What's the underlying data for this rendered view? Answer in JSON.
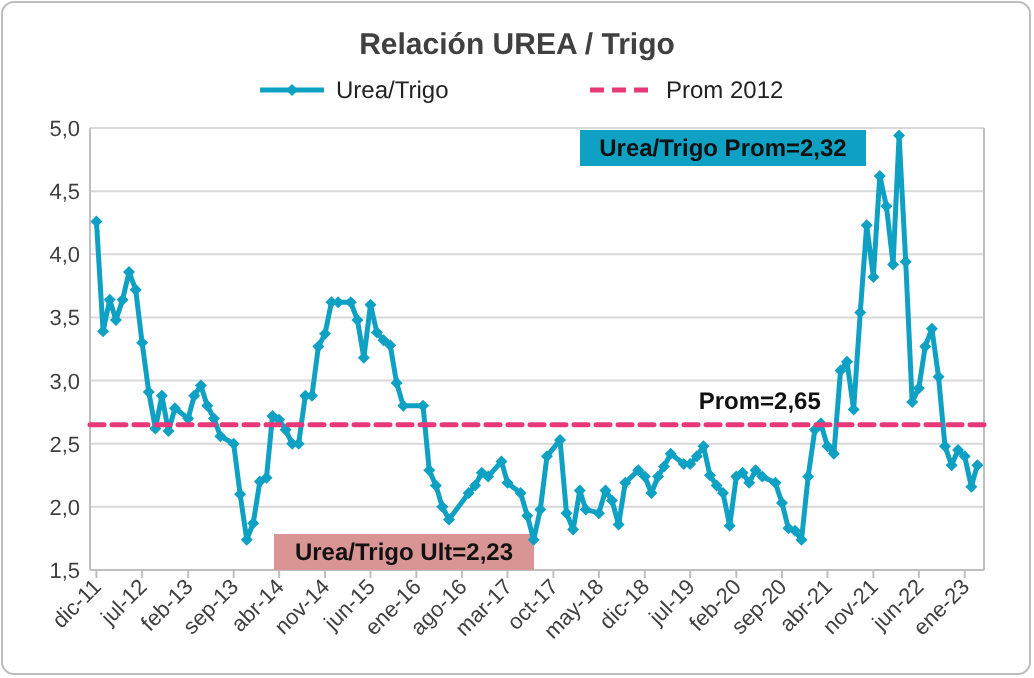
{
  "chart_data": {
    "type": "line",
    "title": "Relación UREA / Trigo",
    "legend": "top",
    "grid": "y",
    "marker": "diamond",
    "series": [
      {
        "name": "Urea/Trigo",
        "color": "#0fa1c4",
        "line_style": "solid",
        "x": [
          "2011-12",
          "2012-01",
          "2012-02",
          "2012-03",
          "2012-04",
          "2012-05",
          "2012-06",
          "2012-07",
          "2012-08",
          "2012-09",
          "2012-10",
          "2012-11",
          "2012-12",
          "2013-02",
          "2013-03",
          "2013-04",
          "2013-05",
          "2013-06",
          "2013-07",
          "2013-09",
          "2013-10",
          "2013-11",
          "2013-12",
          "2014-01",
          "2014-02",
          "2014-03",
          "2014-04",
          "2014-05",
          "2014-06",
          "2014-07",
          "2014-08",
          "2014-09",
          "2014-10",
          "2014-11",
          "2014-12",
          "2015-01",
          "2015-03",
          "2015-04",
          "2015-05",
          "2015-06",
          "2015-07",
          "2015-08",
          "2015-09",
          "2015-10",
          "2015-11",
          "2016-02",
          "2016-03",
          "2016-04",
          "2016-05",
          "2016-06",
          "2016-09",
          "2016-10",
          "2016-11",
          "2016-12",
          "2017-02",
          "2017-03",
          "2017-05",
          "2017-06",
          "2017-07",
          "2017-08",
          "2017-09",
          "2017-11",
          "2017-12",
          "2018-01",
          "2018-02",
          "2018-03",
          "2018-05",
          "2018-06",
          "2018-07",
          "2018-08",
          "2018-09",
          "2018-11",
          "2018-12",
          "2019-01",
          "2019-02",
          "2019-03",
          "2019-04",
          "2019-06",
          "2019-07",
          "2019-08",
          "2019-09",
          "2019-10",
          "2019-11",
          "2019-12",
          "2020-01",
          "2020-02",
          "2020-03",
          "2020-04",
          "2020-05",
          "2020-06",
          "2020-08",
          "2020-09",
          "2020-10",
          "2020-11",
          "2020-12",
          "2021-01",
          "2021-02",
          "2021-03",
          "2021-04",
          "2021-05",
          "2021-06",
          "2021-07",
          "2021-08",
          "2021-09",
          "2021-10",
          "2021-11",
          "2021-12",
          "2022-01",
          "2022-02",
          "2022-03",
          "2022-04",
          "2022-05",
          "2022-06",
          "2022-07",
          "2022-08",
          "2022-09",
          "2022-10",
          "2022-11",
          "2022-12",
          "2023-01",
          "2023-02",
          "2023-03"
        ],
        "values": [
          4.26,
          3.39,
          3.64,
          3.48,
          3.64,
          3.86,
          3.72,
          3.3,
          2.91,
          2.62,
          2.88,
          2.6,
          2.78,
          2.7,
          2.88,
          2.96,
          2.8,
          2.7,
          2.56,
          2.5,
          2.1,
          1.74,
          1.87,
          2.2,
          2.23,
          2.72,
          2.69,
          2.61,
          2.5,
          2.5,
          2.88,
          2.88,
          3.27,
          3.37,
          3.62,
          3.62,
          3.62,
          3.48,
          3.18,
          3.6,
          3.38,
          3.32,
          3.28,
          2.98,
          2.8,
          2.8,
          2.29,
          2.17,
          2.0,
          1.9,
          2.11,
          2.17,
          2.27,
          2.24,
          2.36,
          2.19,
          2.11,
          1.93,
          1.74,
          1.98,
          2.4,
          2.53,
          1.95,
          1.82,
          2.13,
          1.98,
          1.95,
          2.13,
          2.05,
          1.86,
          2.19,
          2.29,
          2.24,
          2.11,
          2.24,
          2.32,
          2.42,
          2.34,
          2.34,
          2.4,
          2.48,
          2.25,
          2.17,
          2.11,
          1.85,
          2.24,
          2.27,
          2.19,
          2.29,
          2.24,
          2.19,
          2.03,
          1.83,
          1.81,
          1.74,
          2.24,
          2.61,
          2.66,
          2.48,
          2.42,
          3.08,
          3.15,
          2.77,
          3.54,
          4.23,
          3.82,
          4.62,
          4.38,
          3.92,
          4.94,
          3.94,
          2.83,
          2.94,
          3.27,
          3.41,
          3.03,
          2.48,
          2.33,
          2.45,
          2.4,
          2.16,
          2.33
        ]
      },
      {
        "name": "Prom 2012",
        "type": "line",
        "color": "#e8387a",
        "line_style": "dashed",
        "marker": "none",
        "x": [
          "2011-11",
          "2023-04"
        ],
        "values": [
          2.65,
          2.65
        ]
      }
    ],
    "annotations": [
      "Urea/Trigo Prom=2,32",
      "Urea/Trigo Ult=2,23",
      {
        "text": "Prom=2,65",
        "x": "2021-03",
        "y": 2.65
      }
    ],
    "xlim": [
      "2011-11",
      "2023-04"
    ],
    "xticks": [
      {
        "value": "2011-12",
        "label": "dic-11"
      },
      {
        "value": "2012-07",
        "label": "jul-12"
      },
      {
        "value": "2013-02",
        "label": "feb-13"
      },
      {
        "value": "2013-09",
        "label": "sep-13"
      },
      {
        "value": "2014-04",
        "label": "abr-14"
      },
      {
        "value": "2014-11",
        "label": "nov-14"
      },
      {
        "value": "2015-06",
        "label": "jun-15"
      },
      {
        "value": "2016-01",
        "label": "ene-16"
      },
      {
        "value": "2016-08",
        "label": "ago-16"
      },
      {
        "value": "2017-03",
        "label": "mar-17"
      },
      {
        "value": "2017-10",
        "label": "oct-17"
      },
      {
        "value": "2018-05",
        "label": "may-18"
      },
      {
        "value": "2018-12",
        "label": "dic-18"
      },
      {
        "value": "2019-07",
        "label": "jul-19"
      },
      {
        "value": "2020-02",
        "label": "feb-20"
      },
      {
        "value": "2020-09",
        "label": "sep-20"
      },
      {
        "value": "2021-04",
        "label": "abr-21"
      },
      {
        "value": "2021-11",
        "label": "nov-21"
      },
      {
        "value": "2022-06",
        "label": "jun-22"
      },
      {
        "value": "2023-01",
        "label": "ene-23"
      }
    ],
    "ylim": [
      1.5,
      5.0
    ],
    "yticks": [
      {
        "value": 1.5,
        "label": "1,5"
      },
      {
        "value": 2.0,
        "label": "2,0"
      },
      {
        "value": 2.5,
        "label": "2,5"
      },
      {
        "value": 3.0,
        "label": "3,0"
      },
      {
        "value": 3.5,
        "label": "3,5"
      },
      {
        "value": 4.0,
        "label": "4,0"
      },
      {
        "value": 4.5,
        "label": "4,5"
      },
      {
        "value": 5.0,
        "label": "5,0"
      }
    ]
  }
}
